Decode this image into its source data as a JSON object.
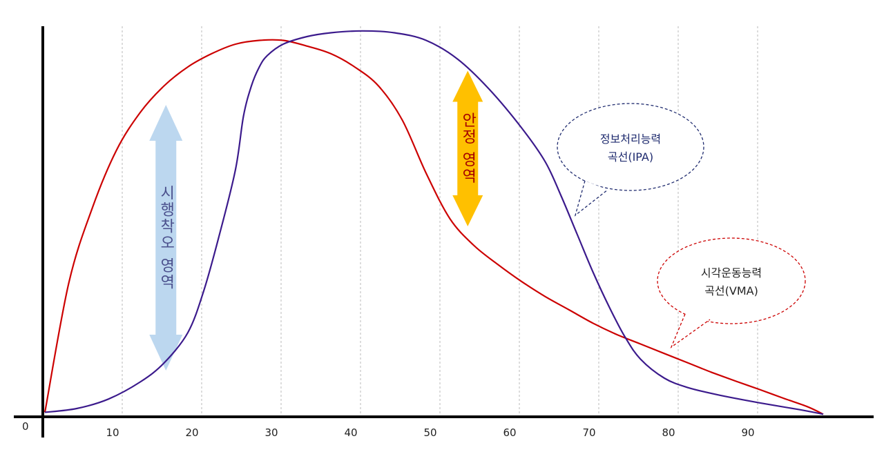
{
  "chart_data": {
    "type": "line",
    "title": "",
    "xlabel": "",
    "ylabel": "",
    "xlim": [
      0,
      100
    ],
    "grid": "vertical dashed",
    "origin_label": "0",
    "x_ticks": [
      "10",
      "20",
      "30",
      "40",
      "50",
      "60",
      "70",
      "80",
      "90"
    ],
    "series": [
      {
        "name": "시각운동능력 곡선(VMA)",
        "color": "#cc0000",
        "x": [
          0,
          3,
          6,
          9,
          12,
          15,
          18,
          21,
          24,
          27,
          30,
          33,
          36,
          39,
          42,
          45,
          48,
          51,
          54,
          57,
          60,
          63,
          66,
          69,
          72,
          75,
          78,
          81,
          84,
          87,
          90,
          93,
          96,
          98
        ],
        "y": [
          0.01,
          0.35,
          0.55,
          0.7,
          0.8,
          0.87,
          0.92,
          0.955,
          0.98,
          0.99,
          0.99,
          0.975,
          0.955,
          0.92,
          0.87,
          0.78,
          0.64,
          0.52,
          0.45,
          0.4,
          0.355,
          0.315,
          0.28,
          0.245,
          0.215,
          0.19,
          0.165,
          0.14,
          0.115,
          0.092,
          0.07,
          0.047,
          0.025,
          0.005
        ]
      },
      {
        "name": "정보처리능력 곡선(IPA)",
        "color": "#3b1a8c",
        "x": [
          0,
          4,
          8,
          12,
          15,
          18,
          20,
          22,
          24,
          25,
          26,
          27,
          28,
          30,
          33,
          36,
          40,
          44,
          48,
          52,
          56,
          60,
          63,
          65,
          67,
          69,
          71,
          73,
          75,
          78,
          81,
          85,
          90,
          95,
          98
        ],
        "y": [
          0.01,
          0.02,
          0.045,
          0.09,
          0.14,
          0.22,
          0.33,
          0.48,
          0.65,
          0.79,
          0.87,
          0.92,
          0.95,
          0.98,
          1.0,
          1.01,
          1.015,
          1.01,
          0.99,
          0.94,
          0.86,
          0.76,
          0.67,
          0.58,
          0.48,
          0.38,
          0.29,
          0.21,
          0.15,
          0.1,
          0.075,
          0.055,
          0.035,
          0.017,
          0.005
        ]
      }
    ],
    "annotations": {
      "trial_error": {
        "label": "시행착오 영역",
        "color": "#bcd7ef",
        "x": 15.5,
        "y_range": [
          0.12,
          0.82
        ]
      },
      "stable": {
        "label": "안정 영역",
        "color": "#ffc000",
        "text_color": "#a50000",
        "x": 53.5,
        "y_range": [
          0.5,
          0.91
        ]
      }
    },
    "callouts": [
      {
        "line1": "정보처리능력",
        "line2": "곡선(IPA)",
        "color": "#1e2a6e"
      },
      {
        "line1": "시각운동능력",
        "line2": "곡선(VMA)",
        "color": "#cc0000"
      }
    ]
  }
}
